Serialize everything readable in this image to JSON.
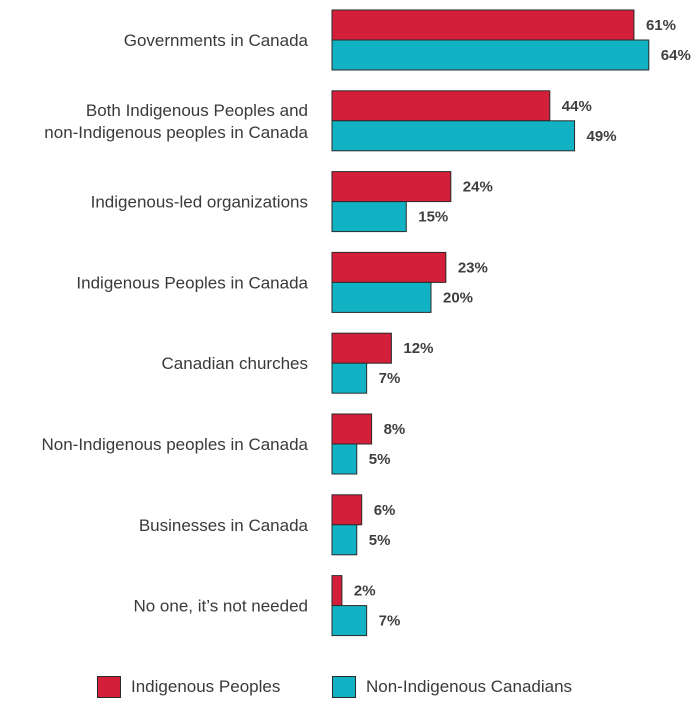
{
  "chart_data": {
    "type": "bar",
    "orientation": "horizontal",
    "categories": [
      [
        "Governments in Canada"
      ],
      [
        "Both Indigenous Peoples and",
        "non-Indigenous peoples in Canada"
      ],
      [
        "Indigenous-led organizations"
      ],
      [
        "Indigenous Peoples in Canada"
      ],
      [
        "Canadian churches"
      ],
      [
        "Non-Indigenous peoples in Canada"
      ],
      [
        "Businesses in Canada"
      ],
      [
        "No one, it’s not needed"
      ]
    ],
    "series": [
      {
        "name": "Indigenous Peoples",
        "color": "#d41f3a",
        "values": [
          61,
          44,
          24,
          23,
          12,
          8,
          6,
          2
        ]
      },
      {
        "name": "Non-Indigenous Canadians",
        "color": "#11b2c4",
        "values": [
          64,
          49,
          15,
          20,
          7,
          5,
          5,
          7
        ]
      }
    ],
    "value_suffix": "%",
    "xlim": [
      0,
      64
    ],
    "grid": false,
    "legend_position": "bottom"
  }
}
